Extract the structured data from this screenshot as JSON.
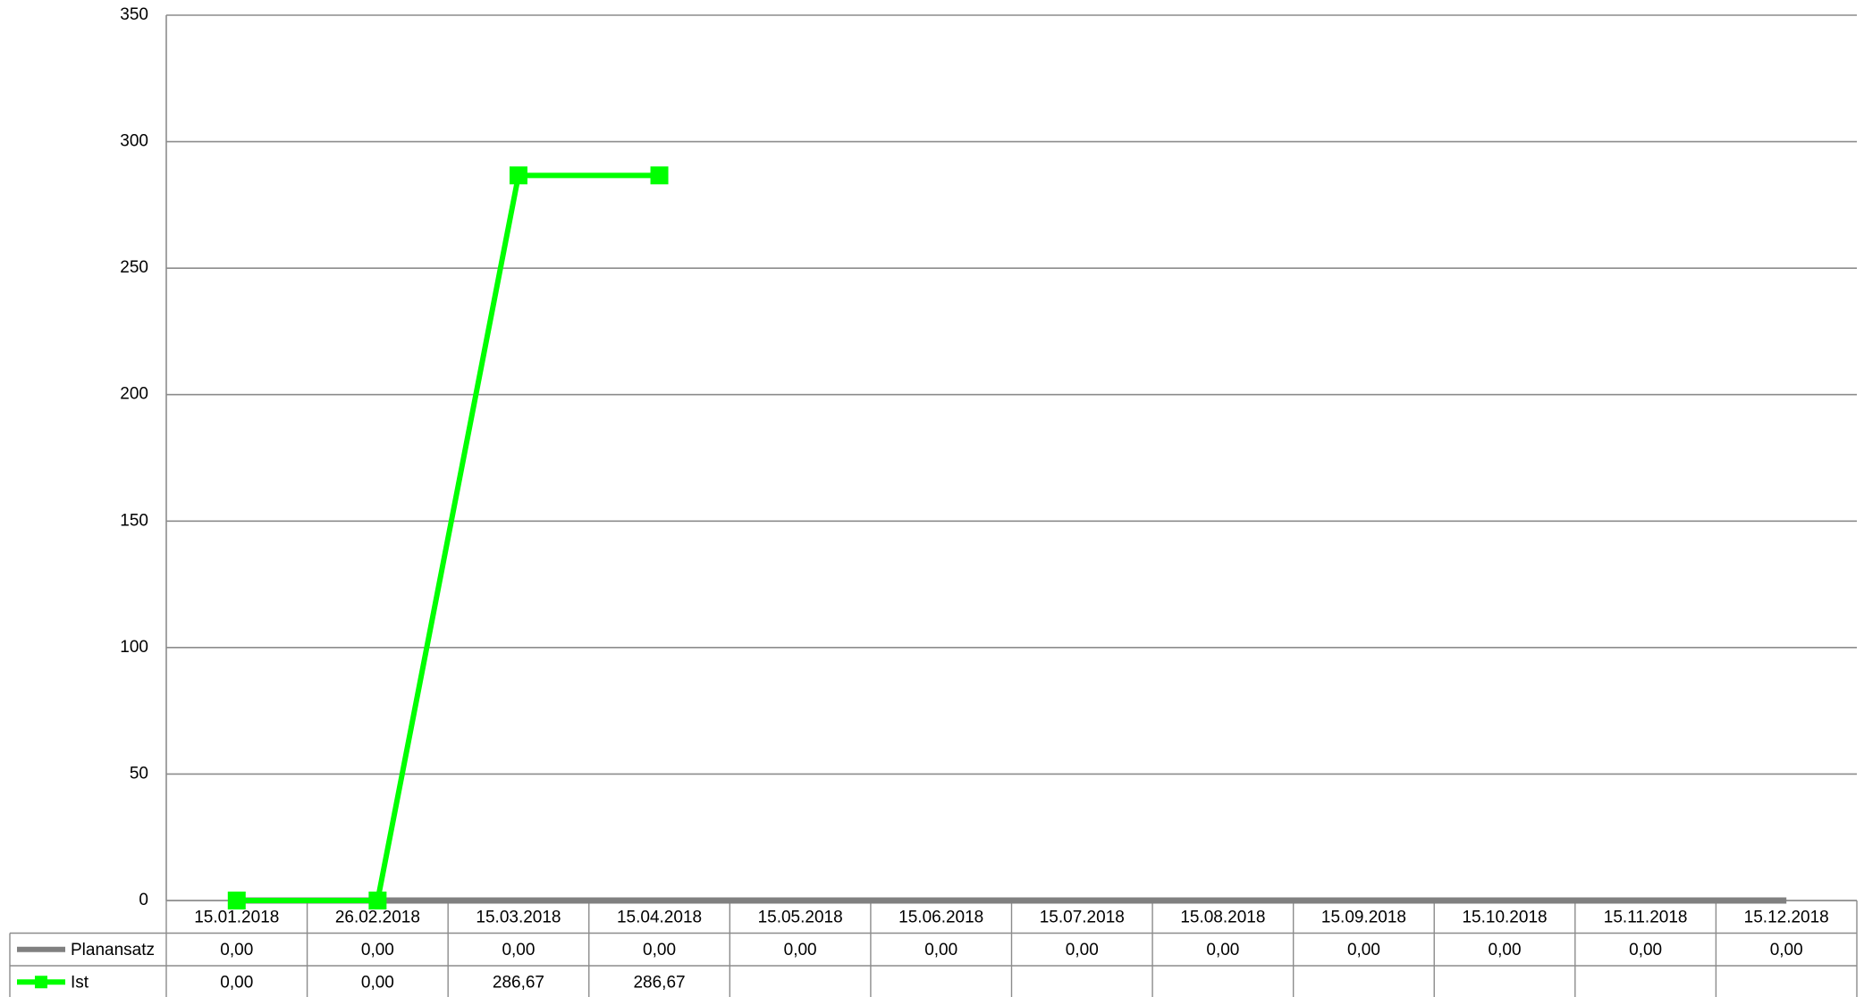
{
  "chart_data": {
    "type": "line",
    "categories": [
      "15.01.2018",
      "26.02.2018",
      "15.03.2018",
      "15.04.2018",
      "15.05.2018",
      "15.06.2018",
      "15.07.2018",
      "15.08.2018",
      "15.09.2018",
      "15.10.2018",
      "15.11.2018",
      "15.12.2018"
    ],
    "series": [
      {
        "name": "Planansatz",
        "color": "#808080",
        "marker": false,
        "values": [
          0,
          0,
          0,
          0,
          0,
          0,
          0,
          0,
          0,
          0,
          0,
          0
        ],
        "value_labels": [
          "0,00",
          "0,00",
          "0,00",
          "0,00",
          "0,00",
          "0,00",
          "0,00",
          "0,00",
          "0,00",
          "0,00",
          "0,00",
          "0,00"
        ]
      },
      {
        "name": "Ist",
        "color": "#00ff00",
        "marker": true,
        "values": [
          0,
          0,
          286.67,
          286.67,
          null,
          null,
          null,
          null,
          null,
          null,
          null,
          null
        ],
        "value_labels": [
          "0,00",
          "0,00",
          "286,67",
          "286,67",
          null,
          null,
          null,
          null,
          null,
          null,
          null,
          null
        ]
      }
    ],
    "ylim": [
      0,
      350
    ],
    "yticks": [
      0,
      50,
      100,
      150,
      200,
      250,
      300,
      350
    ],
    "grid": true,
    "data_table": true
  }
}
